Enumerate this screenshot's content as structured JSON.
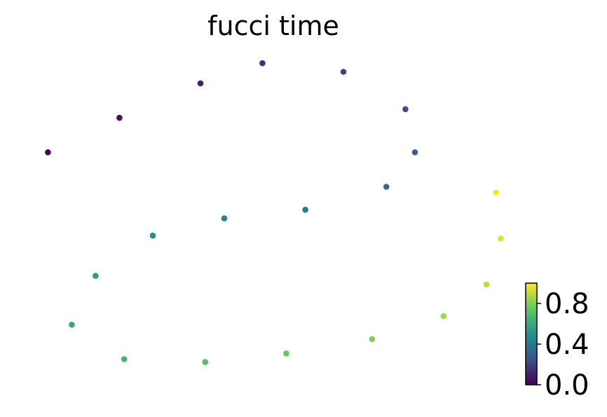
{
  "chart_data": {
    "type": "scatter",
    "title": "fucci time",
    "xlabel": "",
    "ylabel": "",
    "axes_visible": false,
    "grid": false,
    "legend": "none",
    "colormap": "viridis",
    "colormap_stops": [
      "#440154",
      "#3b528b",
      "#21918c",
      "#5ec962",
      "#fde725"
    ],
    "colorbar": {
      "position": "right",
      "range": [
        0,
        1
      ],
      "ticks": [
        0.0,
        0.4,
        0.8
      ],
      "tick_labels": [
        "0.0",
        "0.4",
        "0.8"
      ]
    },
    "points": [
      {
        "x": 0.03,
        "y": 0.33,
        "value": 0.01
      },
      {
        "x": 0.18,
        "y": 0.21,
        "value": 0.05
      },
      {
        "x": 0.35,
        "y": 0.09,
        "value": 0.1
      },
      {
        "x": 0.48,
        "y": 0.02,
        "value": 0.15
      },
      {
        "x": 0.65,
        "y": 0.05,
        "value": 0.2
      },
      {
        "x": 0.78,
        "y": 0.18,
        "value": 0.25
      },
      {
        "x": 0.8,
        "y": 0.33,
        "value": 0.3
      },
      {
        "x": 0.74,
        "y": 0.45,
        "value": 0.35
      },
      {
        "x": 0.57,
        "y": 0.53,
        "value": 0.4
      },
      {
        "x": 0.4,
        "y": 0.56,
        "value": 0.45
      },
      {
        "x": 0.25,
        "y": 0.62,
        "value": 0.5
      },
      {
        "x": 0.13,
        "y": 0.76,
        "value": 0.55
      },
      {
        "x": 0.08,
        "y": 0.93,
        "value": 0.6
      },
      {
        "x": 0.19,
        "y": 1.05,
        "value": 0.65
      },
      {
        "x": 0.36,
        "y": 1.06,
        "value": 0.7
      },
      {
        "x": 0.53,
        "y": 1.03,
        "value": 0.75
      },
      {
        "x": 0.71,
        "y": 0.98,
        "value": 0.8
      },
      {
        "x": 0.86,
        "y": 0.9,
        "value": 0.85
      },
      {
        "x": 0.95,
        "y": 0.79,
        "value": 0.9
      },
      {
        "x": 0.98,
        "y": 0.63,
        "value": 0.95
      },
      {
        "x": 0.97,
        "y": 0.47,
        "value": 1.0
      }
    ]
  }
}
